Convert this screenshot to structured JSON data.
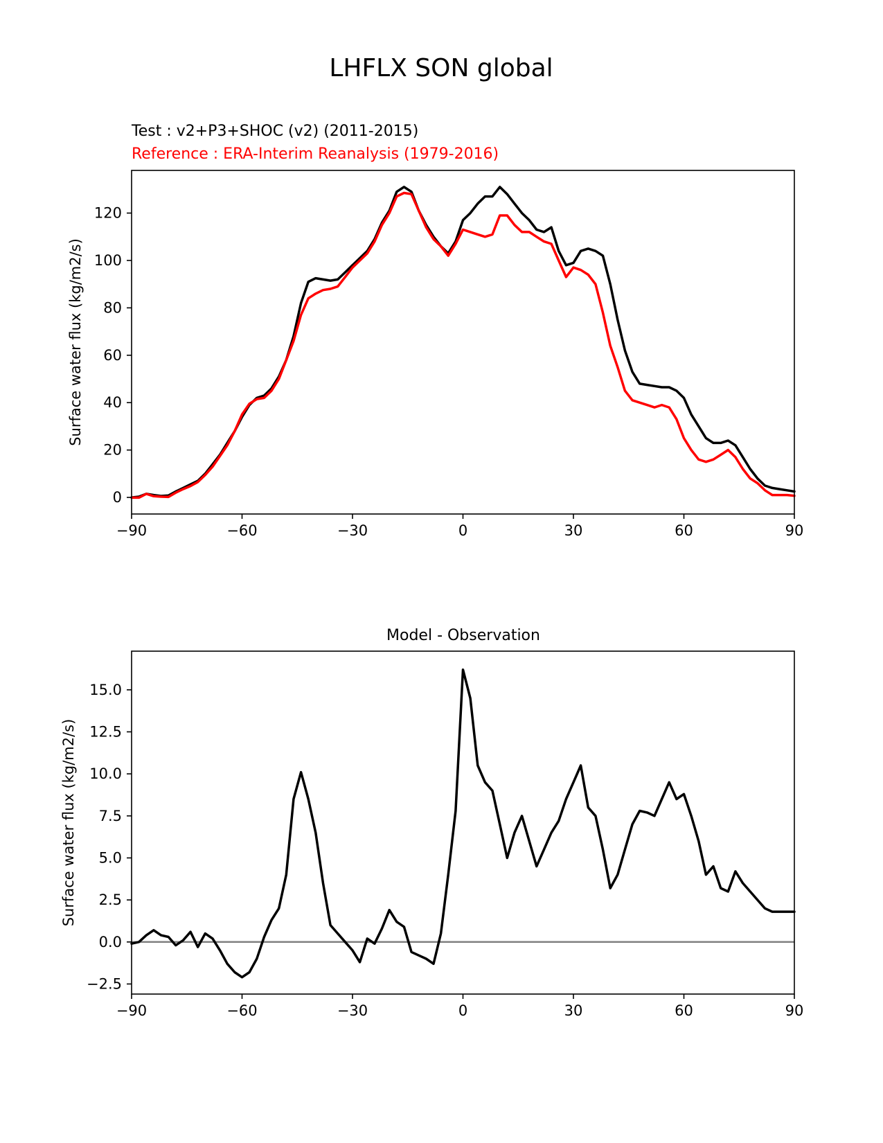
{
  "figure": {
    "title": "LHFLX SON global"
  },
  "chart_data": [
    {
      "type": "line",
      "test_label": "Test : v2+P3+SHOC (v2) (2011-2015)",
      "reference_label": "Reference : ERA-Interim Reanalysis (1979-2016)",
      "xlabel": "",
      "ylabel": "Surface water flux (kg/m2/s)",
      "xlim": [
        -90,
        90
      ],
      "ylim": [
        -7,
        138
      ],
      "xticks": [
        -90,
        -60,
        -30,
        0,
        30,
        60,
        90
      ],
      "xtick_labels": [
        "−90",
        "−60",
        "−30",
        "0",
        "30",
        "60",
        "90"
      ],
      "yticks": [
        0,
        20,
        40,
        60,
        80,
        100,
        120
      ],
      "ytick_labels": [
        "0",
        "20",
        "40",
        "60",
        "80",
        "100",
        "120"
      ],
      "x": [
        -90,
        -88,
        -86,
        -84,
        -82,
        -80,
        -78,
        -76,
        -74,
        -72,
        -70,
        -68,
        -66,
        -64,
        -62,
        -60,
        -58,
        -56,
        -54,
        -52,
        -50,
        -48,
        -46,
        -44,
        -42,
        -40,
        -38,
        -36,
        -34,
        -32,
        -30,
        -28,
        -26,
        -24,
        -22,
        -20,
        -18,
        -16,
        -14,
        -12,
        -10,
        -8,
        -6,
        -4,
        -2,
        0,
        2,
        4,
        6,
        8,
        10,
        12,
        14,
        16,
        18,
        20,
        22,
        24,
        26,
        28,
        30,
        32,
        34,
        36,
        38,
        40,
        42,
        44,
        46,
        48,
        50,
        52,
        54,
        56,
        58,
        60,
        62,
        64,
        66,
        68,
        70,
        72,
        74,
        76,
        78,
        80,
        82,
        84,
        86,
        88,
        90
      ],
      "series": [
        {
          "name": "Test",
          "color": "#000000",
          "values": [
            0,
            0.3,
            1.5,
            1,
            0.6,
            0.8,
            2.5,
            4,
            5.5,
            7,
            10,
            14,
            18,
            23,
            28,
            34,
            39,
            42,
            43,
            46,
            51,
            58,
            68,
            82,
            91,
            92.5,
            92,
            91.5,
            92,
            95,
            98,
            101,
            104,
            109,
            116,
            121,
            129,
            131,
            129,
            121,
            115,
            110,
            106,
            103,
            108,
            117,
            120,
            124,
            127,
            127,
            131,
            128,
            124,
            120,
            117,
            113,
            112,
            114,
            104,
            98,
            99,
            104,
            105,
            104,
            102,
            90,
            75,
            62,
            53,
            48,
            47.5,
            47,
            46.5,
            46.5,
            45,
            42,
            35,
            30,
            25,
            23,
            23,
            24,
            22,
            17,
            12,
            8,
            5,
            4,
            3.5,
            3,
            2.5
          ]
        },
        {
          "name": "Reference",
          "color": "#ff0000",
          "values": [
            -0.1,
            -0.1,
            1.5,
            0.5,
            0.3,
            0.2,
            2,
            3.5,
            4.8,
            6.5,
            9.5,
            13,
            17.5,
            22,
            28,
            35,
            39.5,
            41.5,
            42,
            45,
            50,
            58,
            66,
            77,
            84,
            86,
            87.5,
            88,
            89,
            93,
            97,
            100,
            103,
            108,
            115,
            120,
            127,
            128.5,
            128,
            121,
            114,
            109,
            106,
            102,
            107,
            113,
            112,
            111,
            110,
            111,
            119,
            119,
            115,
            112,
            112,
            110,
            108,
            107,
            100,
            93,
            97,
            96,
            94,
            90,
            78,
            64,
            55,
            45,
            41,
            40,
            39,
            38,
            39,
            38,
            33,
            25,
            20,
            16,
            15,
            16,
            18,
            20,
            17,
            12,
            8,
            6,
            3,
            1,
            1,
            1,
            0.7
          ]
        }
      ]
    },
    {
      "type": "line",
      "title": "Model - Observation",
      "xlabel": "",
      "ylabel": "Surface water flux (kg/m2/s)",
      "xlim": [
        -90,
        90
      ],
      "ylim": [
        -3.1,
        17.3
      ],
      "xticks": [
        -90,
        -60,
        -30,
        0,
        30,
        60,
        90
      ],
      "xtick_labels": [
        "−90",
        "−60",
        "−30",
        "0",
        "30",
        "60",
        "90"
      ],
      "yticks": [
        -2.5,
        0,
        2.5,
        5,
        7.5,
        10,
        12.5,
        15
      ],
      "ytick_labels": [
        "−2.5",
        "0.0",
        "2.5",
        "5.0",
        "7.5",
        "10.0",
        "12.5",
        "15.0"
      ],
      "zero_line_color": "#808080",
      "x": [
        -90,
        -88,
        -86,
        -84,
        -82,
        -80,
        -78,
        -76,
        -74,
        -72,
        -70,
        -68,
        -66,
        -64,
        -62,
        -60,
        -58,
        -56,
        -54,
        -52,
        -50,
        -48,
        -46,
        -44,
        -42,
        -40,
        -38,
        -36,
        -34,
        -32,
        -30,
        -28,
        -26,
        -24,
        -22,
        -20,
        -18,
        -16,
        -14,
        -12,
        -10,
        -8,
        -6,
        -4,
        -2,
        0,
        2,
        4,
        6,
        8,
        10,
        12,
        14,
        16,
        18,
        20,
        22,
        24,
        26,
        28,
        30,
        32,
        34,
        36,
        38,
        40,
        42,
        44,
        46,
        48,
        50,
        52,
        54,
        56,
        58,
        60,
        62,
        64,
        66,
        68,
        70,
        72,
        74,
        76,
        78,
        80,
        82,
        84,
        86,
        88,
        90
      ],
      "series": [
        {
          "name": "Model - Observation",
          "color": "#000000",
          "values": [
            -0.1,
            0,
            0.4,
            0.7,
            0.4,
            0.3,
            -0.2,
            0.1,
            0.6,
            -0.3,
            0.5,
            0.2,
            -0.5,
            -1.3,
            -1.8,
            -2.1,
            -1.8,
            -1,
            0.3,
            1.3,
            2,
            4,
            8.5,
            10.1,
            8.5,
            6.5,
            3.5,
            1,
            0.5,
            0,
            -0.5,
            -1.2,
            0.2,
            -0.1,
            0.8,
            1.9,
            1.2,
            0.9,
            -0.6,
            -0.8,
            -1,
            -1.3,
            0.5,
            4,
            7.8,
            16.2,
            14.5,
            10.5,
            9.5,
            9,
            7,
            5,
            6.5,
            7.5,
            6,
            4.5,
            5.5,
            6.5,
            7.2,
            8.5,
            9.5,
            10.5,
            8,
            7.5,
            5.5,
            3.2,
            4,
            5.5,
            7,
            7.8,
            7.7,
            7.5,
            8.5,
            9.5,
            8.5,
            8.8,
            7.5,
            6,
            4,
            4.5,
            3.2,
            3,
            4.2,
            3.5,
            3,
            2.5,
            2,
            1.8,
            1.8,
            1.8,
            1.8
          ]
        }
      ]
    }
  ]
}
